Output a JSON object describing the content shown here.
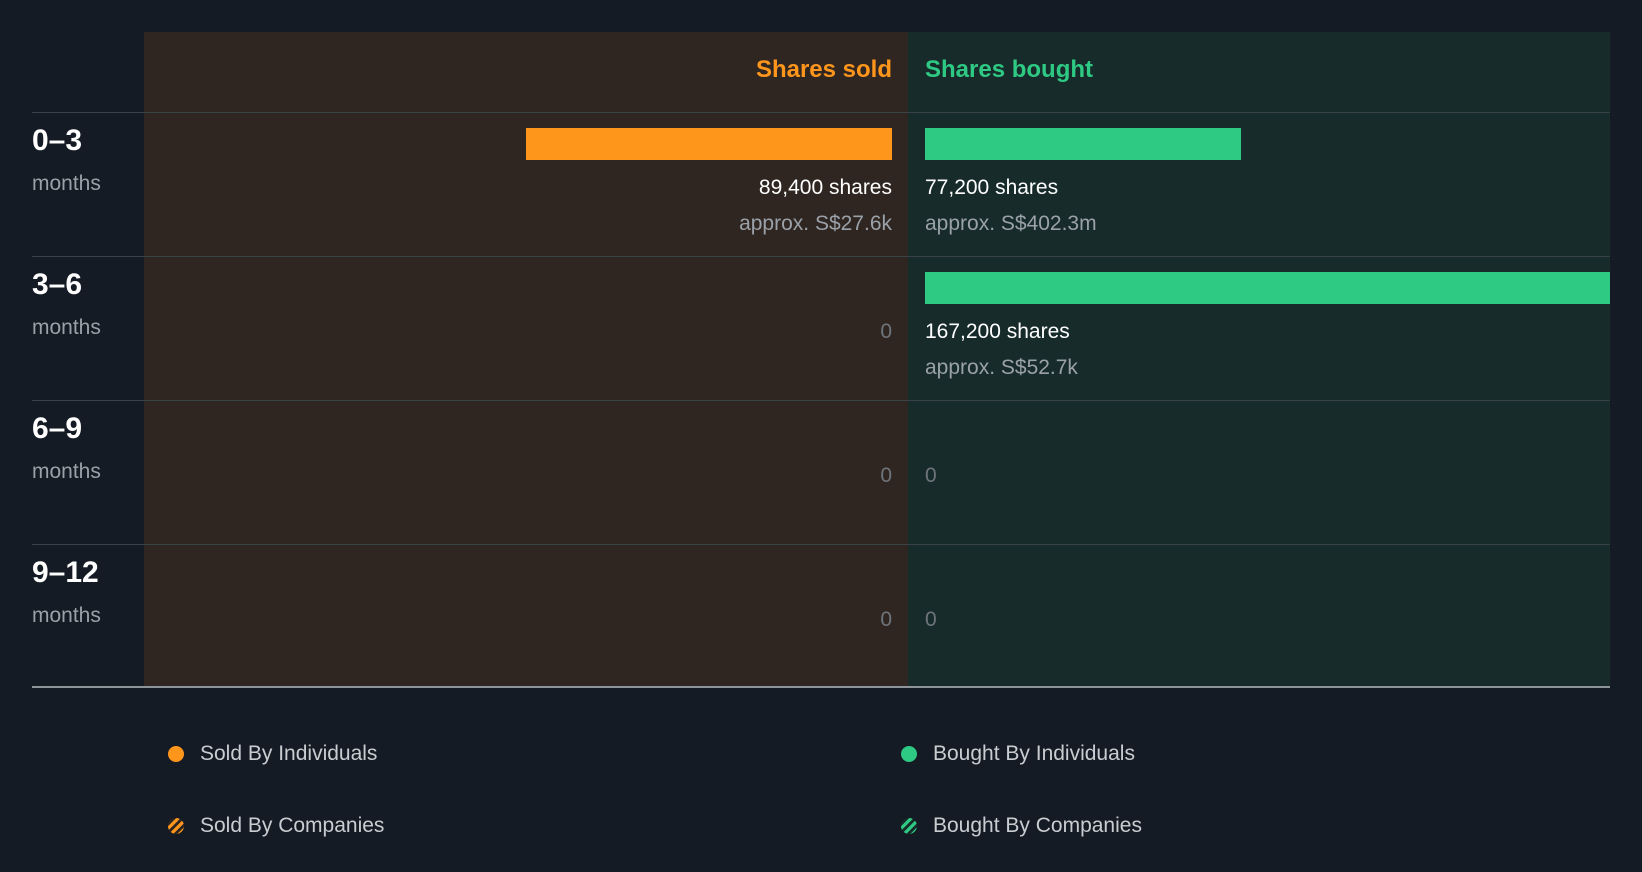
{
  "header": {
    "sold": "Shares sold",
    "bought": "Shares bought"
  },
  "colors": {
    "sold": "#ff961c",
    "bought": "#2ec983",
    "background": "#151b24"
  },
  "chart_data": {
    "type": "bar",
    "categories": [
      "0–3 months",
      "3–6 months",
      "6–9 months",
      "9–12 months"
    ],
    "series": [
      {
        "name": "Shares sold",
        "values": [
          89400,
          0,
          0,
          0
        ]
      },
      {
        "name": "Shares bought",
        "values": [
          77200,
          167200,
          0,
          0
        ]
      }
    ],
    "xlim": [
      0,
      167200
    ]
  },
  "rows": [
    {
      "period": "0–3",
      "unit": "months",
      "sold": {
        "shares": 89400,
        "label": "89,400 shares",
        "approx": "approx. S$27.6k"
      },
      "bought": {
        "shares": 77200,
        "label": "77,200 shares",
        "approx": "approx. S$402.3m"
      }
    },
    {
      "period": "3–6",
      "unit": "months",
      "sold": {
        "shares": 0,
        "label": "0",
        "approx": ""
      },
      "bought": {
        "shares": 167200,
        "label": "167,200 shares",
        "approx": "approx. S$52.7k"
      }
    },
    {
      "period": "6–9",
      "unit": "months",
      "sold": {
        "shares": 0,
        "label": "0",
        "approx": ""
      },
      "bought": {
        "shares": 0,
        "label": "0",
        "approx": ""
      }
    },
    {
      "period": "9–12",
      "unit": "months",
      "sold": {
        "shares": 0,
        "label": "0",
        "approx": ""
      },
      "bought": {
        "shares": 0,
        "label": "0",
        "approx": ""
      }
    }
  ],
  "legend": {
    "sold_individuals": "Sold By Individuals",
    "bought_individuals": "Bought By Individuals",
    "sold_companies": "Sold By Companies",
    "bought_companies": "Bought By Companies"
  }
}
